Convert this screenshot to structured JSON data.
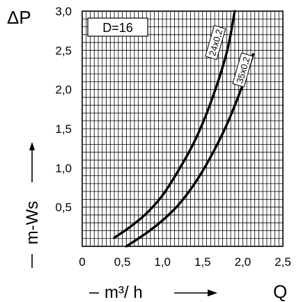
{
  "chart_data": {
    "type": "line",
    "ylabel_symbol": "ΔP",
    "ylabel_text": "m-Ws",
    "xlabel_text": "m³/ h",
    "xlabel_symbol": "Q",
    "parameter_label": "D=16",
    "xlim": [
      0,
      2.5
    ],
    "ylim": [
      0,
      3.0
    ],
    "x_ticks": [
      "0",
      "0,5",
      "1,0",
      "1,5",
      "2,0",
      "2,5"
    ],
    "y_ticks": [
      "0,5",
      "1,0",
      "1,5",
      "2,0",
      "2,5",
      "3,0"
    ],
    "grid": true,
    "series": [
      {
        "name": "24x0,2",
        "x": [
          0.4,
          0.6,
          0.8,
          1.0,
          1.2,
          1.4,
          1.6,
          1.8,
          1.9
        ],
        "y": [
          0.11,
          0.25,
          0.42,
          0.65,
          0.97,
          1.34,
          1.83,
          2.47,
          3.0
        ]
      },
      {
        "name": "35x0,2",
        "x": [
          0.55,
          0.8,
          1.0,
          1.2,
          1.4,
          1.6,
          1.8,
          2.0,
          2.13
        ],
        "y": [
          0.0,
          0.17,
          0.33,
          0.53,
          0.8,
          1.14,
          1.55,
          2.06,
          2.45
        ]
      }
    ]
  }
}
